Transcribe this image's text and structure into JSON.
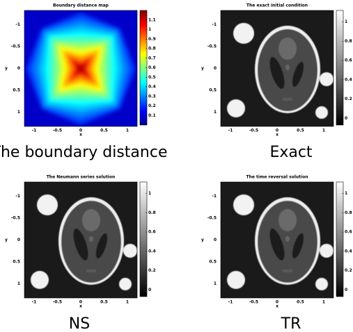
{
  "panels": [
    {
      "title": "Boundary distance map",
      "caption": "The boundary distance",
      "x_label": "x",
      "y_label": "y",
      "x_ticks": [
        -1,
        -0.5,
        0,
        0.5,
        1
      ],
      "y_ticks": [
        -1,
        -0.5,
        0,
        0.5,
        1
      ],
      "colorbar_ticks": [
        0.1,
        0.2,
        0.3,
        0.4,
        0.5,
        0.6,
        0.7,
        0.8,
        0.9,
        1,
        1.1
      ]
    },
    {
      "title": "The exact initial condition",
      "caption": "Exact",
      "x_label": "x",
      "y_label": "y",
      "x_ticks": [
        -1,
        -0.5,
        0,
        0.5,
        1
      ],
      "y_ticks": [
        -1,
        -0.5,
        0,
        0.5,
        1
      ],
      "colorbar_ticks": [
        0,
        0.2,
        0.4,
        0.6,
        0.8,
        1
      ]
    },
    {
      "title": "The Neumann series solution",
      "caption": "NS",
      "x_label": "x",
      "y_label": "y",
      "x_ticks": [
        -1,
        -0.5,
        0,
        0.5,
        1
      ],
      "y_ticks": [
        -1,
        -0.5,
        0,
        0.5,
        1
      ],
      "colorbar_ticks": [
        0,
        0.2,
        0.4,
        0.6,
        0.8,
        1
      ]
    },
    {
      "title": "The time reversal solution",
      "caption": "TR",
      "x_label": "x",
      "y_label": "y",
      "x_ticks": [
        -1,
        -0.5,
        0,
        0.5,
        1
      ],
      "y_ticks": [
        -1,
        -0.5,
        0,
        0.5,
        1
      ],
      "colorbar_ticks": [
        0,
        0.2,
        0.4,
        0.6,
        0.8,
        1
      ]
    }
  ]
}
